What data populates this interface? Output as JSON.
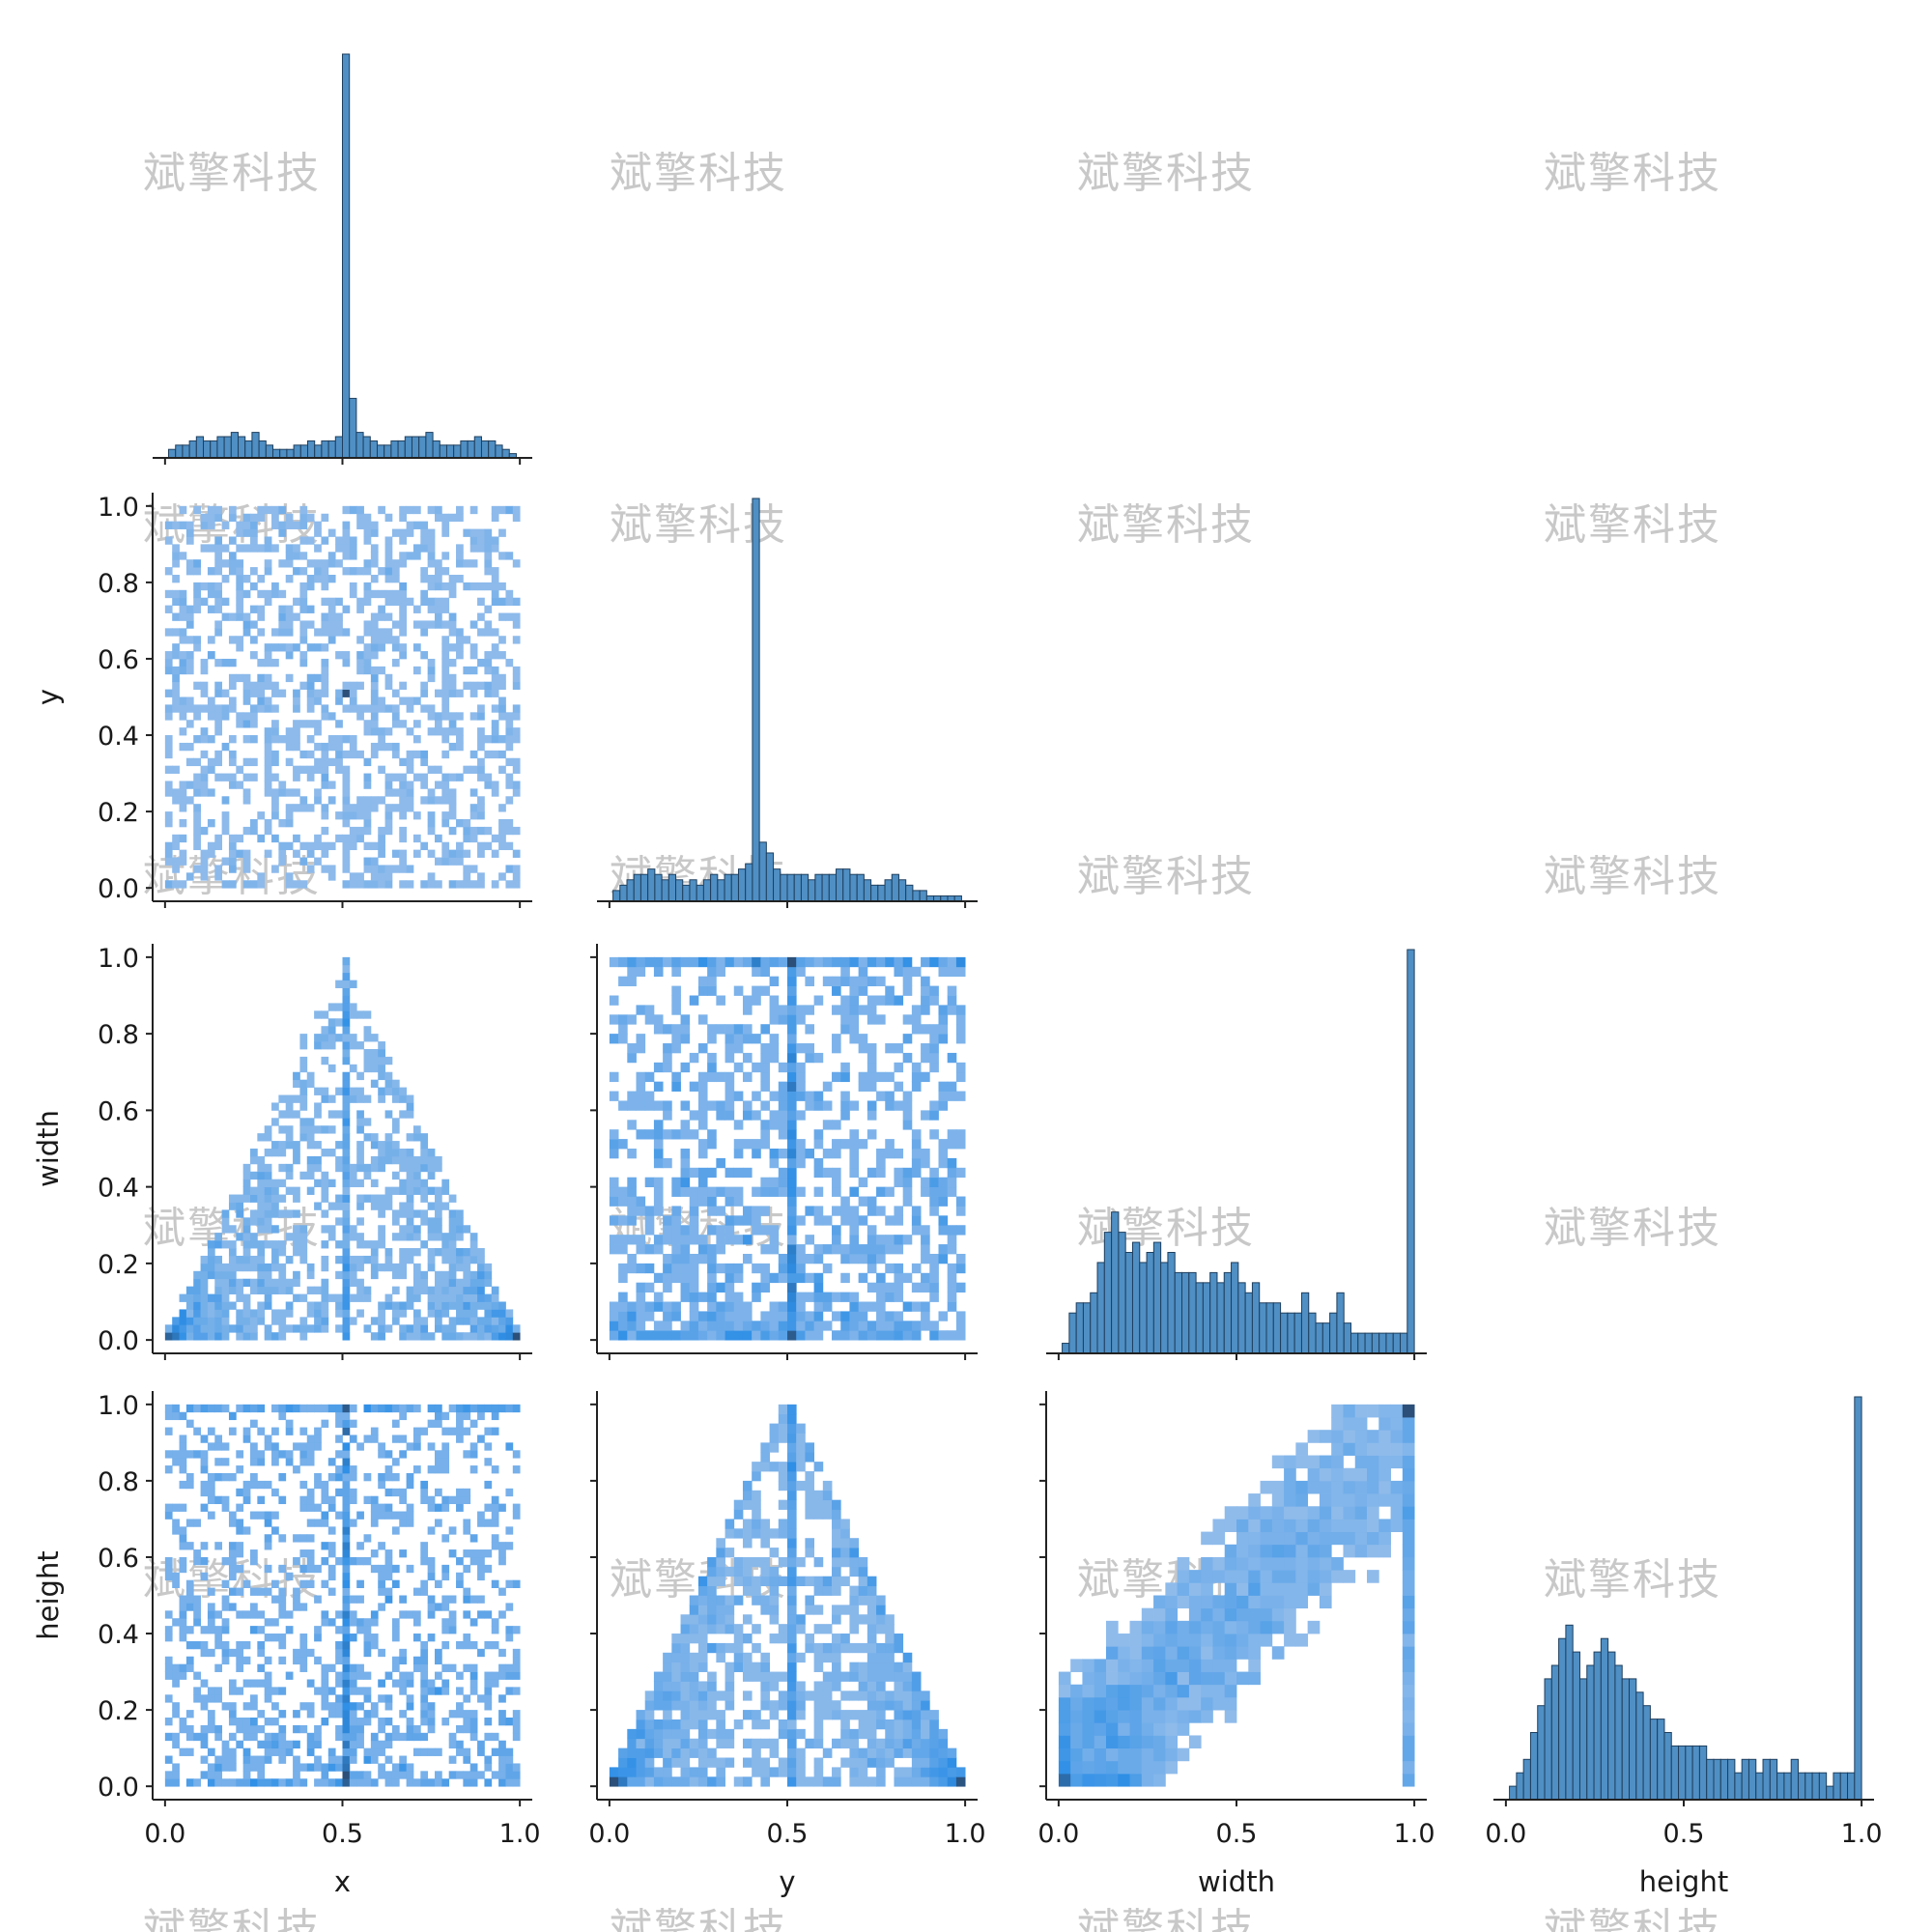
{
  "watermark_text": "斌擎科技",
  "colors": {
    "bar_fill": "#4f8fc4",
    "bar_edge": "#1f3f5e",
    "heat_light": "#a9c7ec",
    "heat_mid": "#2f8fe6",
    "heat_dark": "#2b4f78"
  },
  "chart_data": {
    "type": "pairplot",
    "variables": [
      "x",
      "y",
      "width",
      "height"
    ],
    "axis_labels": {
      "x": "x",
      "y": "y",
      "width": "width",
      "height": "height"
    },
    "range": [
      0,
      1
    ],
    "x_ticks": [
      "0.0",
      "0.5",
      "1.0"
    ],
    "y_ticks": [
      "0.0",
      "0.2",
      "0.4",
      "0.6",
      "0.8",
      "1.0"
    ],
    "grid": false,
    "layout": "lower-triangle",
    "diagonal_type": "histogram",
    "offdiagonal_type": "2d-histogram",
    "histograms": {
      "x": {
        "bins": 50,
        "bin_range": [
          0.01,
          0.99
        ],
        "counts": [
          2,
          3,
          3,
          4,
          5,
          4,
          4,
          5,
          5,
          6,
          5,
          4,
          6,
          4,
          3,
          2,
          2,
          2,
          3,
          3,
          4,
          3,
          4,
          4,
          5,
          95,
          14,
          6,
          5,
          4,
          3,
          3,
          4,
          4,
          5,
          5,
          5,
          6,
          4,
          3,
          3,
          3,
          4,
          4,
          5,
          4,
          4,
          3,
          2,
          1
        ]
      },
      "y": {
        "bins": 50,
        "bin_range": [
          0.01,
          0.99
        ],
        "counts": [
          2,
          3,
          4,
          5,
          5,
          6,
          5,
          4,
          5,
          4,
          3,
          4,
          3,
          4,
          5,
          4,
          5,
          5,
          6,
          7,
          75,
          11,
          9,
          6,
          5,
          5,
          5,
          5,
          4,
          5,
          5,
          5,
          6,
          6,
          5,
          5,
          4,
          3,
          3,
          4,
          5,
          4,
          3,
          2,
          2,
          1,
          1,
          1,
          1,
          1
        ]
      },
      "width": {
        "bins": 50,
        "bin_range": [
          0.01,
          1.0
        ],
        "counts": [
          1,
          4,
          5,
          5,
          6,
          9,
          12,
          14,
          12,
          10,
          11,
          9,
          10,
          11,
          9,
          10,
          8,
          8,
          8,
          7,
          7,
          8,
          7,
          8,
          9,
          7,
          6,
          7,
          5,
          5,
          5,
          4,
          4,
          4,
          6,
          4,
          3,
          3,
          4,
          6,
          3,
          2,
          2,
          2,
          2,
          2,
          2,
          2,
          2,
          40
        ]
      },
      "height": {
        "bins": 50,
        "bin_range": [
          0.01,
          1.0
        ],
        "counts": [
          1,
          2,
          3,
          5,
          7,
          9,
          10,
          12,
          13,
          11,
          9,
          10,
          11,
          12,
          11,
          10,
          9,
          9,
          8,
          7,
          6,
          6,
          5,
          4,
          4,
          4,
          4,
          4,
          3,
          3,
          3,
          3,
          2,
          3,
          3,
          2,
          3,
          3,
          2,
          2,
          3,
          2,
          2,
          2,
          2,
          1,
          2,
          2,
          2,
          30
        ]
      }
    },
    "joint_features": [
      {
        "x": "x",
        "y": "y",
        "description": "roughly uniform scatter over [0,1]x[0,1], dense point near (0.5, 0.5)"
      },
      {
        "x": "x",
        "y": "width",
        "description": "triangle bounded by width <= 2*min(x, 1-x), apex at (0.5, 1.0), dense vertical line at x = 0.5"
      },
      {
        "x": "y",
        "y": "width",
        "description": "spread across full range, dense vertical line at y = 0.5"
      },
      {
        "x": "x",
        "y": "height",
        "description": "spread across full range, dense vertical line at x = 0.5"
      },
      {
        "x": "y",
        "y": "height",
        "description": "triangle bounded by height <= 2*min(y, 1-y), apex at (0.5, 1.0), dense edges and dense vertical line at y = 0.5"
      },
      {
        "x": "width",
        "y": "height",
        "description": "positive correlation, densest near (0.15, 0.15), dense column at width = 1.0"
      }
    ]
  }
}
